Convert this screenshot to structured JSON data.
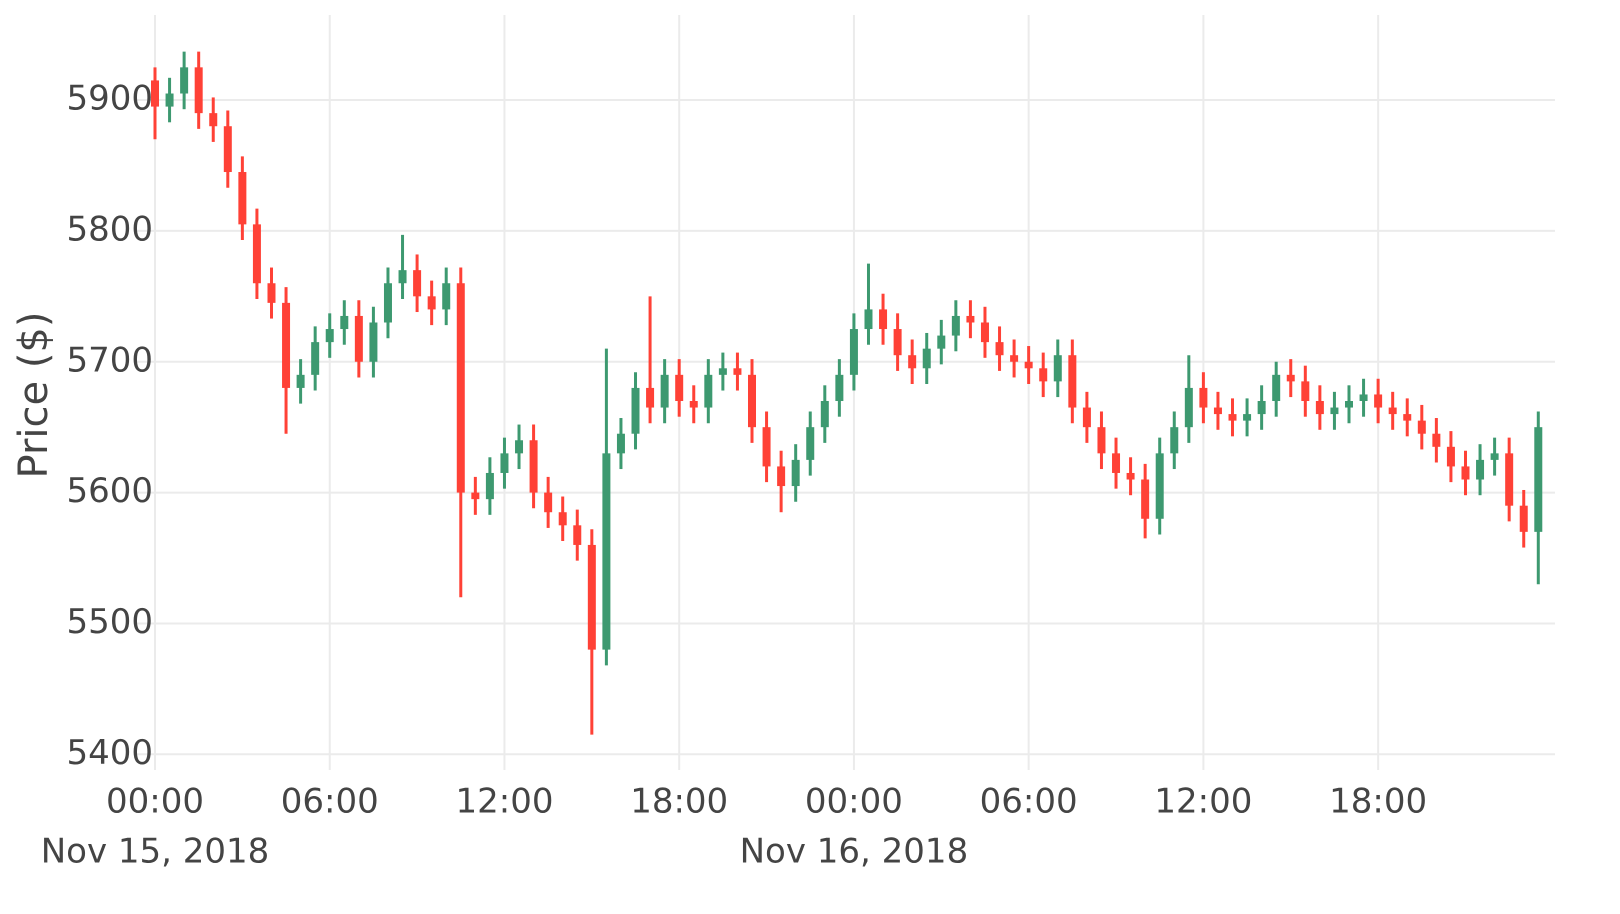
{
  "chart_data": {
    "type": "candlestick",
    "y_label": "Price ($)",
    "increasing_color": "#3d9970",
    "decreasing_color": "#ff4136",
    "grid": true,
    "ylim": [
      5388,
      5965
    ],
    "yticks": [
      5400,
      5500,
      5600,
      5700,
      5800,
      5900
    ],
    "xlim": [
      "2018-11-15 00:00",
      "2018-11-16 23:50"
    ],
    "xticks": [
      {
        "value": "2018-11-15 00:00",
        "label": "00:00",
        "date_label": "Nov 15, 2018"
      },
      {
        "value": "2018-11-15 06:00",
        "label": "06:00"
      },
      {
        "value": "2018-11-15 12:00",
        "label": "12:00"
      },
      {
        "value": "2018-11-15 18:00",
        "label": "18:00"
      },
      {
        "value": "2018-11-16 00:00",
        "label": "00:00",
        "date_label": "Nov 16, 2018"
      },
      {
        "value": "2018-11-16 06:00",
        "label": "06:00"
      },
      {
        "value": "2018-11-16 12:00",
        "label": "12:00"
      },
      {
        "value": "2018-11-16 18:00",
        "label": "18:00"
      }
    ],
    "x": [
      "2018-11-15 00:00",
      "2018-11-15 00:30",
      "2018-11-15 01:00",
      "2018-11-15 01:30",
      "2018-11-15 02:00",
      "2018-11-15 02:30",
      "2018-11-15 03:00",
      "2018-11-15 03:30",
      "2018-11-15 04:00",
      "2018-11-15 04:30",
      "2018-11-15 05:00",
      "2018-11-15 05:30",
      "2018-11-15 06:00",
      "2018-11-15 06:30",
      "2018-11-15 07:00",
      "2018-11-15 07:30",
      "2018-11-15 08:00",
      "2018-11-15 08:30",
      "2018-11-15 09:00",
      "2018-11-15 09:30",
      "2018-11-15 10:00",
      "2018-11-15 10:30",
      "2018-11-15 11:00",
      "2018-11-15 11:30",
      "2018-11-15 12:00",
      "2018-11-15 12:30",
      "2018-11-15 13:00",
      "2018-11-15 13:30",
      "2018-11-15 14:00",
      "2018-11-15 14:30",
      "2018-11-15 15:00",
      "2018-11-15 15:30",
      "2018-11-15 16:00",
      "2018-11-15 16:30",
      "2018-11-15 17:00",
      "2018-11-15 17:30",
      "2018-11-15 18:00",
      "2018-11-15 18:30",
      "2018-11-15 19:00",
      "2018-11-15 19:30",
      "2018-11-15 20:00",
      "2018-11-15 20:30",
      "2018-11-15 21:00",
      "2018-11-15 21:30",
      "2018-11-15 22:00",
      "2018-11-15 22:30",
      "2018-11-15 23:00",
      "2018-11-15 23:30",
      "2018-11-16 00:00",
      "2018-11-16 00:30",
      "2018-11-16 01:00",
      "2018-11-16 01:30",
      "2018-11-16 02:00",
      "2018-11-16 02:30",
      "2018-11-16 03:00",
      "2018-11-16 03:30",
      "2018-11-16 04:00",
      "2018-11-16 04:30",
      "2018-11-16 05:00",
      "2018-11-16 05:30",
      "2018-11-16 06:00",
      "2018-11-16 06:30",
      "2018-11-16 07:00",
      "2018-11-16 07:30",
      "2018-11-16 08:00",
      "2018-11-16 08:30",
      "2018-11-16 09:00",
      "2018-11-16 09:30",
      "2018-11-16 10:00",
      "2018-11-16 10:30",
      "2018-11-16 11:00",
      "2018-11-16 11:30",
      "2018-11-16 12:00",
      "2018-11-16 12:30",
      "2018-11-16 13:00",
      "2018-11-16 13:30",
      "2018-11-16 14:00",
      "2018-11-16 14:30",
      "2018-11-16 15:00",
      "2018-11-16 15:30",
      "2018-11-16 16:00",
      "2018-11-16 16:30",
      "2018-11-16 17:00",
      "2018-11-16 17:30",
      "2018-11-16 18:00",
      "2018-11-16 18:30",
      "2018-11-16 19:00",
      "2018-11-16 19:30",
      "2018-11-16 20:00",
      "2018-11-16 20:30",
      "2018-11-16 21:00",
      "2018-11-16 21:30",
      "2018-11-16 22:00",
      "2018-11-16 22:30",
      "2018-11-16 23:00",
      "2018-11-16 23:30"
    ],
    "open": [
      5915,
      5895,
      5905,
      5925,
      5890,
      5880,
      5845,
      5805,
      5760,
      5745,
      5680,
      5690,
      5715,
      5725,
      5735,
      5700,
      5730,
      5760,
      5770,
      5750,
      5740,
      5760,
      5600,
      5595,
      5615,
      5630,
      5640,
      5600,
      5585,
      5575,
      5560,
      5480,
      5630,
      5645,
      5680,
      5665,
      5690,
      5670,
      5665,
      5690,
      5695,
      5690,
      5650,
      5620,
      5605,
      5625,
      5650,
      5670,
      5690,
      5725,
      5740,
      5725,
      5705,
      5695,
      5710,
      5720,
      5735,
      5730,
      5715,
      5705,
      5700,
      5695,
      5685,
      5705,
      5665,
      5650,
      5630,
      5615,
      5610,
      5580,
      5630,
      5650,
      5680,
      5665,
      5660,
      5655,
      5660,
      5670,
      5690,
      5685,
      5670,
      5660,
      5665,
      5670,
      5675,
      5665,
      5660,
      5655,
      5645,
      5635,
      5620,
      5610,
      5625,
      5630,
      5590,
      5570
    ],
    "high": [
      5925,
      5917,
      5937,
      5937,
      5902,
      5892,
      5857,
      5817,
      5772,
      5757,
      5702,
      5727,
      5737,
      5747,
      5747,
      5742,
      5772,
      5797,
      5782,
      5762,
      5772,
      5772,
      5612,
      5627,
      5642,
      5652,
      5652,
      5612,
      5597,
      5587,
      5572,
      5710,
      5657,
      5692,
      5750,
      5702,
      5702,
      5682,
      5702,
      5707,
      5707,
      5702,
      5662,
      5632,
      5637,
      5662,
      5682,
      5702,
      5737,
      5775,
      5752,
      5737,
      5717,
      5722,
      5732,
      5747,
      5747,
      5742,
      5727,
      5717,
      5712,
      5707,
      5717,
      5717,
      5677,
      5662,
      5642,
      5627,
      5622,
      5642,
      5662,
      5705,
      5692,
      5677,
      5672,
      5672,
      5682,
      5700,
      5702,
      5697,
      5682,
      5677,
      5682,
      5687,
      5687,
      5677,
      5672,
      5667,
      5657,
      5647,
      5632,
      5637,
      5642,
      5642,
      5602,
      5662
    ],
    "low": [
      5870,
      5883,
      5893,
      5878,
      5868,
      5833,
      5793,
      5748,
      5733,
      5645,
      5668,
      5678,
      5703,
      5713,
      5688,
      5688,
      5718,
      5748,
      5738,
      5728,
      5728,
      5520,
      5583,
      5583,
      5603,
      5618,
      5588,
      5573,
      5563,
      5548,
      5415,
      5468,
      5618,
      5633,
      5653,
      5653,
      5658,
      5653,
      5653,
      5678,
      5678,
      5638,
      5608,
      5585,
      5593,
      5613,
      5638,
      5658,
      5678,
      5713,
      5713,
      5693,
      5683,
      5683,
      5698,
      5708,
      5718,
      5703,
      5693,
      5688,
      5683,
      5673,
      5673,
      5653,
      5638,
      5618,
      5603,
      5598,
      5565,
      5568,
      5618,
      5638,
      5653,
      5648,
      5643,
      5643,
      5648,
      5658,
      5673,
      5658,
      5648,
      5648,
      5653,
      5658,
      5653,
      5648,
      5643,
      5633,
      5623,
      5608,
      5598,
      5598,
      5613,
      5578,
      5558,
      5530
    ],
    "close": [
      5895,
      5905,
      5925,
      5890,
      5880,
      5845,
      5805,
      5760,
      5745,
      5680,
      5690,
      5715,
      5725,
      5735,
      5700,
      5730,
      5760,
      5770,
      5750,
      5740,
      5760,
      5600,
      5595,
      5615,
      5630,
      5640,
      5600,
      5585,
      5575,
      5560,
      5480,
      5630,
      5645,
      5680,
      5665,
      5690,
      5670,
      5665,
      5690,
      5695,
      5690,
      5650,
      5620,
      5605,
      5625,
      5650,
      5670,
      5690,
      5725,
      5740,
      5725,
      5705,
      5695,
      5710,
      5720,
      5735,
      5730,
      5715,
      5705,
      5700,
      5695,
      5685,
      5705,
      5665,
      5650,
      5630,
      5615,
      5610,
      5580,
      5630,
      5650,
      5680,
      5665,
      5660,
      5655,
      5660,
      5670,
      5690,
      5685,
      5670,
      5660,
      5665,
      5670,
      5675,
      5665,
      5660,
      5655,
      5645,
      5635,
      5620,
      5610,
      5625,
      5630,
      5590,
      5570,
      5650
    ]
  }
}
